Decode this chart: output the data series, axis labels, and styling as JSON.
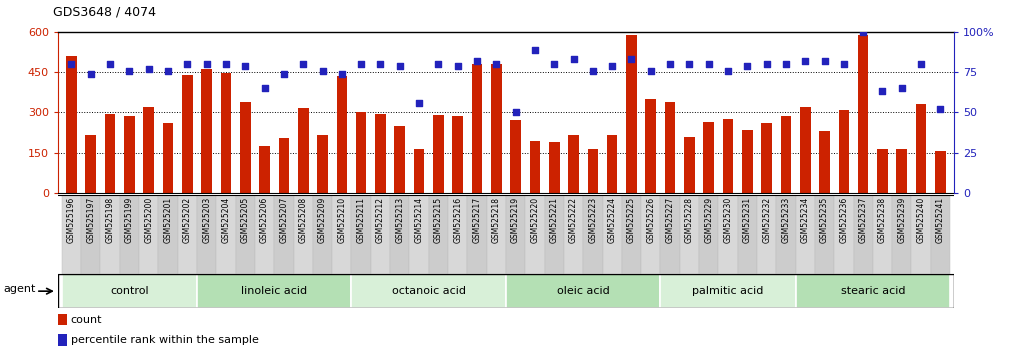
{
  "title": "GDS3648 / 4074",
  "samples": [
    "GSM525196",
    "GSM525197",
    "GSM525198",
    "GSM525199",
    "GSM525200",
    "GSM525201",
    "GSM525202",
    "GSM525203",
    "GSM525204",
    "GSM525205",
    "GSM525206",
    "GSM525207",
    "GSM525208",
    "GSM525209",
    "GSM525210",
    "GSM525211",
    "GSM525212",
    "GSM525213",
    "GSM525214",
    "GSM525215",
    "GSM525216",
    "GSM525217",
    "GSM525218",
    "GSM525219",
    "GSM525220",
    "GSM525221",
    "GSM525222",
    "GSM525223",
    "GSM525224",
    "GSM525225",
    "GSM525226",
    "GSM525227",
    "GSM525228",
    "GSM525229",
    "GSM525230",
    "GSM525231",
    "GSM525232",
    "GSM525233",
    "GSM525234",
    "GSM525235",
    "GSM525236",
    "GSM525237",
    "GSM525238",
    "GSM525239",
    "GSM525240",
    "GSM525241"
  ],
  "counts": [
    510,
    215,
    295,
    285,
    320,
    260,
    440,
    460,
    445,
    340,
    175,
    205,
    315,
    215,
    435,
    300,
    295,
    250,
    165,
    290,
    285,
    480,
    480,
    270,
    195,
    190,
    215,
    165,
    215,
    590,
    350,
    340,
    210,
    265,
    275,
    235,
    260,
    285,
    320,
    230,
    310,
    590,
    165,
    165,
    330,
    155
  ],
  "percentiles": [
    80,
    74,
    80,
    76,
    77,
    76,
    80,
    80,
    80,
    79,
    65,
    74,
    80,
    76,
    74,
    80,
    80,
    79,
    56,
    80,
    79,
    82,
    80,
    50,
    89,
    80,
    83,
    76,
    79,
    83,
    76,
    80,
    80,
    80,
    76,
    79,
    80,
    80,
    82,
    82,
    80,
    100,
    63,
    65,
    80,
    52
  ],
  "groups": [
    {
      "label": "control",
      "start": 0,
      "end": 7
    },
    {
      "label": "linoleic acid",
      "start": 7,
      "end": 15
    },
    {
      "label": "octanoic acid",
      "start": 15,
      "end": 23
    },
    {
      "label": "oleic acid",
      "start": 23,
      "end": 31
    },
    {
      "label": "palmitic acid",
      "start": 31,
      "end": 38
    },
    {
      "label": "stearic acid",
      "start": 38,
      "end": 46
    }
  ],
  "bar_color": "#CC2200",
  "dot_color": "#2222BB",
  "ylim_left": [
    0,
    600
  ],
  "ylim_right": [
    0,
    100
  ],
  "yticks_left": [
    0,
    150,
    300,
    450,
    600
  ],
  "yticks_right": [
    0,
    25,
    50,
    75,
    100
  ],
  "hlines": [
    150,
    300,
    450
  ],
  "group_colors_alt": [
    "#d8f0d8",
    "#b4e0b4",
    "#d8f0d8",
    "#b4e0b4",
    "#d8f0d8",
    "#b4e0b4"
  ],
  "group_border_color": "#000000",
  "bar_width": 0.55,
  "tick_label_fontsize": 5.5,
  "group_label_fontsize": 8,
  "legend_fontsize": 8,
  "title_fontsize": 9
}
